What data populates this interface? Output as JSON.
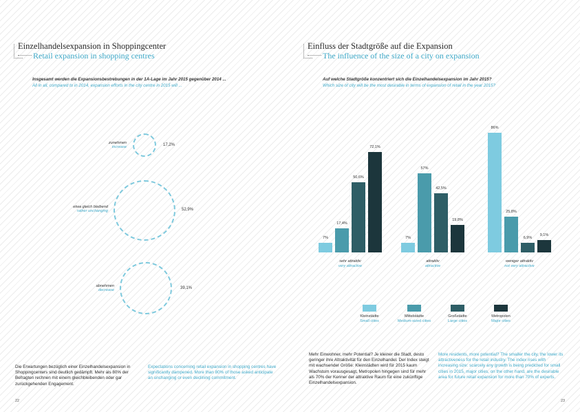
{
  "left": {
    "title_de": "Einzelhandelsexpansion in Shoppingcenter",
    "title_en": "Retail expansion in shopping centres",
    "question_de": "Insgesamt werden die Expansionsbestrebungen in der 1A-Lage im Jahr 2015 gegenüber 2014 ...",
    "question_en": "All in all, compared to in 2014, expansion efforts in the city centre in 2015 will ...",
    "circles": [
      {
        "de": "zunehmen",
        "en": "increase",
        "pct_label": "17,2%",
        "value": 17.2
      },
      {
        "de": "etwa gleich bleibend",
        "en": "rather unchanging",
        "pct_label": "52,9%",
        "value": 52.9
      },
      {
        "de": "abnehmen",
        "en": "decrease",
        "pct_label": "39,1%",
        "value": 39.1
      }
    ],
    "body_de": "Die Erwartungen bezüglich einer Einzelhandelsexpansion in Shoppingcenters sind deutlich gedämpft. Mehr als 80% der Befragten rechnen mit einem gleichbleibenden oder gar zurückgehenden Engagement.",
    "body_en": "Expectations concerning retail expansion in shopping centres have significantly dampened. More than 80% of those asked anticipate an unchanging or even declining commitment.",
    "page_number": "22"
  },
  "right": {
    "title_de": "Einfluss der Stadtgröße auf die Expansion",
    "title_en": "The influence of the size of a city on expansion",
    "question_de": "Auf welche Stadtgröße konzentriert sich die Einzelhandelsexpansion im Jahr 2015?",
    "question_en": "Which size of city will be the most desirable in terms of expansion of retail in the year 2015?",
    "body_de": "Mehr Einwohner, mehr Potential? Je kleiner die Stadt, desto geringer ihre Attraktivität für den Einzelhandel. Der Index steigt mit wachsender Größe: Kleinstädten wird für 2015 kaum Wachstum vorausgesagt, Metropolen hingegen sind für mehr als 70% der Kenner der attraktive Raum für eine zukünftige Einzelhandelsexpansion.",
    "body_en": "More residents, more potential? The smaller the city, the lower its attractiveness for the retail industry. The index rises with increasing size: scarcely any growth is being predicted for small cities in 2015, major cities, on the other hand, are the desirable area for future retail expansion for more than 70% of experts.",
    "page_number": "23"
  },
  "chart_data": {
    "type": "bar",
    "categories": [
      {
        "de": "sehr attraktiv",
        "en": "very attractive"
      },
      {
        "de": "attraktiv",
        "en": "attractive"
      },
      {
        "de": "weniger attraktiv",
        "en": "not very attractive"
      }
    ],
    "series": [
      {
        "name": "Kleinstädte",
        "name_en": "Small cities",
        "color": "#7ecbe0",
        "values": [
          7,
          7,
          86
        ],
        "labels": [
          "7%",
          "7%",
          "86%"
        ]
      },
      {
        "name": "Mittelstädte",
        "name_en": "Medium-sized cities",
        "color": "#4a9bab",
        "values": [
          17.4,
          57,
          25.8
        ],
        "labels": [
          "17,4%",
          "57%",
          "25,8%"
        ]
      },
      {
        "name": "Großstädte",
        "name_en": "Large cities",
        "color": "#2e5e66",
        "values": [
          50.6,
          42.5,
          6.9
        ],
        "labels": [
          "50,6%",
          "42,5%",
          "6,9%"
        ]
      },
      {
        "name": "Metropolen",
        "name_en": "Major cities",
        "color": "#1c363c",
        "values": [
          72.1,
          19.8,
          9.1
        ],
        "labels": [
          "72,1%",
          "19,8%",
          "9,1%"
        ]
      }
    ],
    "ylim": [
      0,
      90
    ],
    "grid": false,
    "legend": "bottom"
  }
}
